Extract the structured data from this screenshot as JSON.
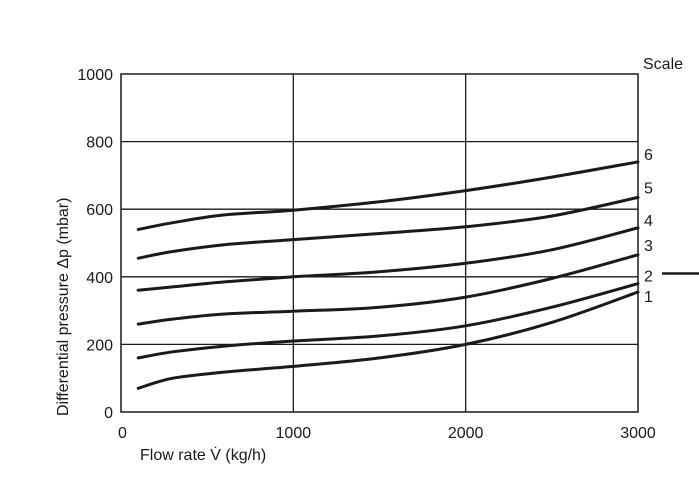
{
  "chart_data": {
    "type": "line",
    "title": "",
    "xlabel": "Flow rate V̇ (kg/h)",
    "ylabel": "Differential pressure Δp (mbar)",
    "xlim": [
      0,
      3000
    ],
    "ylim": [
      0,
      1000
    ],
    "x_ticks": [
      0,
      1000,
      2000,
      3000
    ],
    "y_ticks": [
      0,
      200,
      400,
      600,
      800,
      1000
    ],
    "grid": true,
    "legend": "none",
    "scale_heading": "Scale",
    "line_color": "#1a1a1a",
    "series": [
      {
        "name": "1",
        "x": [
          100,
          300,
          600,
          1000,
          1500,
          2000,
          2500,
          3000
        ],
        "y": [
          70,
          100,
          118,
          135,
          160,
          200,
          265,
          355
        ]
      },
      {
        "name": "2",
        "x": [
          100,
          300,
          600,
          1000,
          1500,
          2000,
          2500,
          3000
        ],
        "y": [
          160,
          178,
          195,
          210,
          225,
          255,
          310,
          380
        ]
      },
      {
        "name": "3",
        "x": [
          100,
          300,
          600,
          1000,
          1500,
          2000,
          2500,
          3000
        ],
        "y": [
          260,
          275,
          290,
          298,
          310,
          340,
          395,
          465
        ]
      },
      {
        "name": "4",
        "x": [
          100,
          300,
          600,
          1000,
          1500,
          2000,
          2500,
          3000
        ],
        "y": [
          360,
          370,
          385,
          400,
          415,
          440,
          480,
          545
        ]
      },
      {
        "name": "5",
        "x": [
          100,
          300,
          600,
          1000,
          1500,
          2000,
          2500,
          3000
        ],
        "y": [
          455,
          475,
          495,
          510,
          528,
          548,
          580,
          635
        ]
      },
      {
        "name": "6",
        "x": [
          100,
          300,
          600,
          1000,
          1500,
          2000,
          2500,
          3000
        ],
        "y": [
          540,
          560,
          583,
          597,
          622,
          655,
          695,
          740
        ]
      }
    ]
  }
}
